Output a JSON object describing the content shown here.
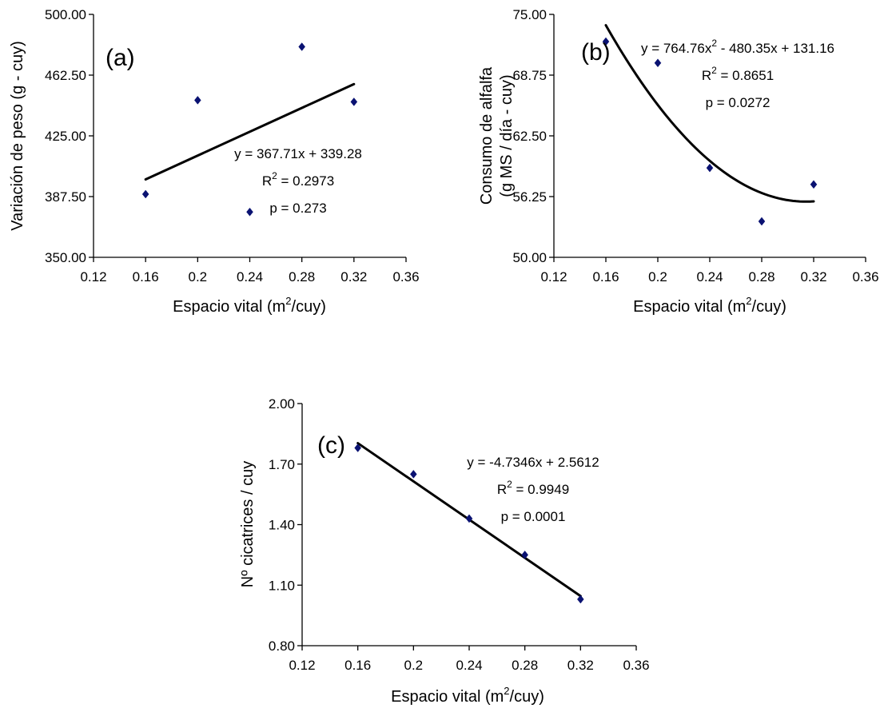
{
  "chart_data": [
    {
      "panel_label": "(a)",
      "type": "scatter",
      "xlabel": "Espacio vital (m",
      "xlabel_sup": "2",
      "xlabel_suffix": "/cuy)",
      "ylabel": "Variación de peso (g - cuy)",
      "xlim": [
        0.12,
        0.36
      ],
      "ylim": [
        350,
        500
      ],
      "x_ticks": [
        "0.12",
        "0.16",
        "0.2",
        "0.24",
        "0.28",
        "0.32",
        "0.36"
      ],
      "y_ticks": [
        "350.00",
        "387.50",
        "425.00",
        "462.50",
        "500.00"
      ],
      "points": [
        {
          "x": 0.16,
          "y": 389
        },
        {
          "x": 0.2,
          "y": 447
        },
        {
          "x": 0.24,
          "y": 378
        },
        {
          "x": 0.28,
          "y": 480
        },
        {
          "x": 0.32,
          "y": 446
        }
      ],
      "trendline": {
        "type": "linear",
        "coefs": [
          339.28,
          367.71
        ],
        "x_range": [
          0.16,
          0.32
        ]
      },
      "annotations": [
        {
          "parts": [
            [
              "y = 367.71x + 339.28",
              ""
            ]
          ]
        },
        {
          "parts": [
            [
              "R",
              ""
            ],
            [
              "2",
              "sup"
            ],
            [
              " = 0.2973",
              ""
            ]
          ]
        },
        {
          "parts": [
            [
              "p = 0.273",
              ""
            ]
          ]
        }
      ]
    },
    {
      "panel_label": "(b)",
      "type": "scatter",
      "xlabel": "Espacio vital (m",
      "xlabel_sup": "2",
      "xlabel_suffix": "/cuy)",
      "ylabel": "Consumo de alfalfa",
      "ylabel2": "(g MS / día - cuy)",
      "xlim": [
        0.12,
        0.36
      ],
      "ylim": [
        50,
        75
      ],
      "x_ticks": [
        "0.12",
        "0.16",
        "0.2",
        "0.24",
        "0.28",
        "0.32",
        "0.36"
      ],
      "y_ticks": [
        "50.00",
        "56.25",
        "62.50",
        "68.75",
        "75.00"
      ],
      "points": [
        {
          "x": 0.16,
          "y": 72.2
        },
        {
          "x": 0.2,
          "y": 70.0
        },
        {
          "x": 0.24,
          "y": 59.2
        },
        {
          "x": 0.28,
          "y": 53.7
        },
        {
          "x": 0.32,
          "y": 57.5
        }
      ],
      "trendline": {
        "type": "poly2",
        "coefs": [
          131.16,
          -480.35,
          764.76
        ],
        "x_range": [
          0.16,
          0.32
        ]
      },
      "annotations": [
        {
          "parts": [
            [
              "y = 764.76x",
              ""
            ],
            [
              "2",
              "sup"
            ],
            [
              " - 480.35x + 131.16",
              ""
            ]
          ]
        },
        {
          "parts": [
            [
              "R",
              ""
            ],
            [
              "2",
              "sup"
            ],
            [
              " = 0.8651",
              ""
            ]
          ]
        },
        {
          "parts": [
            [
              "p = 0.0272",
              ""
            ]
          ]
        }
      ]
    },
    {
      "panel_label": "(c)",
      "type": "scatter",
      "xlabel": "Espacio vital (m",
      "xlabel_sup": "2",
      "xlabel_suffix": "/cuy)",
      "ylabel": "Nº cicatrices / cuy",
      "xlim": [
        0.12,
        0.36
      ],
      "ylim": [
        0.8,
        2.0
      ],
      "x_ticks": [
        "0.12",
        "0.16",
        "0.2",
        "0.24",
        "0.28",
        "0.32",
        "0.36"
      ],
      "y_ticks": [
        "0.80",
        "1.10",
        "1.40",
        "1.70",
        "2.00"
      ],
      "points": [
        {
          "x": 0.16,
          "y": 1.78
        },
        {
          "x": 0.2,
          "y": 1.65
        },
        {
          "x": 0.24,
          "y": 1.43
        },
        {
          "x": 0.28,
          "y": 1.25
        },
        {
          "x": 0.32,
          "y": 1.03
        }
      ],
      "trendline": {
        "type": "linear",
        "coefs": [
          2.5612,
          -4.7346
        ],
        "x_range": [
          0.16,
          0.32
        ]
      },
      "annotations": [
        {
          "parts": [
            [
              "y = -4.7346x + 2.5612",
              ""
            ]
          ]
        },
        {
          "parts": [
            [
              "R",
              ""
            ],
            [
              "2",
              "sup"
            ],
            [
              " = 0.9949",
              ""
            ]
          ]
        },
        {
          "parts": [
            [
              "p = 0.0001",
              ""
            ]
          ]
        }
      ]
    }
  ],
  "colors": {
    "marker": "#0A1272",
    "trendline": "#000000",
    "axis": "#000000"
  }
}
